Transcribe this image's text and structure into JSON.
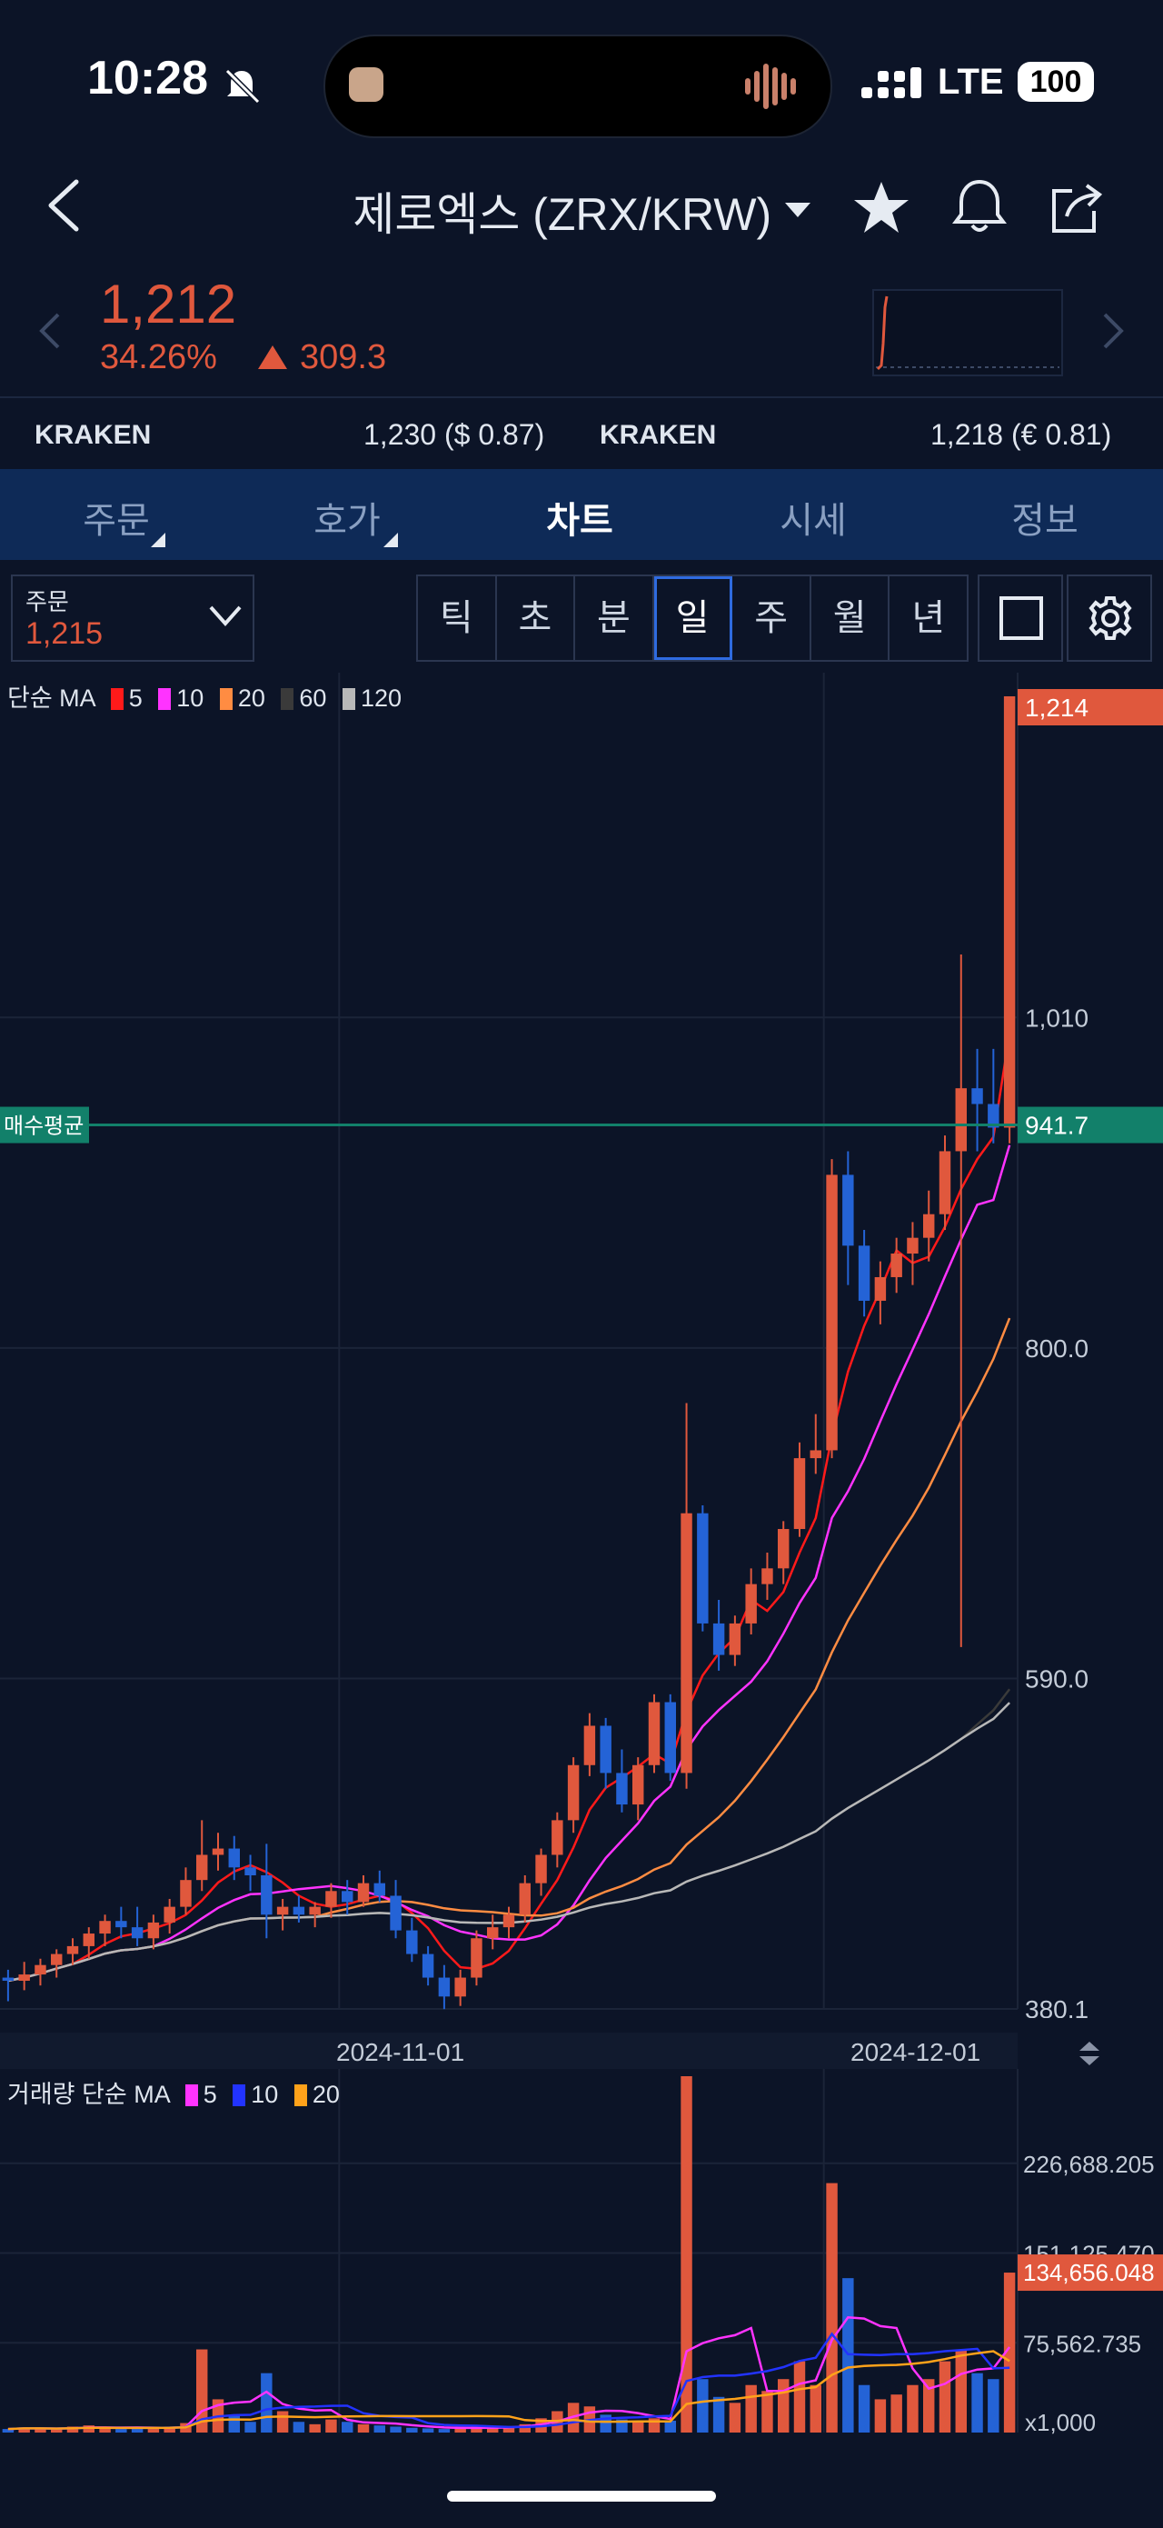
{
  "status": {
    "time": "10:28",
    "network": "LTE",
    "battery": "100"
  },
  "header": {
    "title": "제로엑스 (ZRX/KRW)",
    "price": "1,212",
    "change_pct": "34.26%",
    "change_abs": "309.3"
  },
  "exchanges": [
    {
      "name": "KRAKEN",
      "value": "1,230 ($ 0.87)"
    },
    {
      "name": "KRAKEN",
      "value": "1,218 (€ 0.81)"
    }
  ],
  "tabs": [
    "주문",
    "호가",
    "차트",
    "시세",
    "정보"
  ],
  "active_tab": "차트",
  "order_box": {
    "label": "주문",
    "value": "1,215"
  },
  "periods": [
    "틱",
    "초",
    "분",
    "일",
    "주",
    "월",
    "년"
  ],
  "active_period": "일",
  "colors": {
    "up": "#e0583d",
    "down": "#2463d6",
    "avg_line": "#12806a",
    "bg": "#0c1427"
  },
  "chart_data": {
    "type": "candlestick",
    "price_legend": {
      "prefix": "단순 MA",
      "periods": [
        "5",
        "10",
        "20",
        "60",
        "120"
      ],
      "colors": [
        "#ff1a1a",
        "#ff33ff",
        "#ff8c42",
        "#3a3a3a",
        "#b8b8b8"
      ]
    },
    "volume_legend": {
      "prefix": "거래량 단순 MA",
      "periods": [
        "5",
        "10",
        "20"
      ],
      "colors": [
        "#ff33ff",
        "#2233ff",
        "#ffa21a"
      ]
    },
    "x_ticks": [
      "2024-11-01",
      "2024-12-01"
    ],
    "y_ticks": [
      "1,010",
      "800.0",
      "590.0",
      "380.1"
    ],
    "ylim": [
      380.1,
      1214
    ],
    "current_price_label": "1,214",
    "avg_buy": {
      "label": "매수평균",
      "value": "941.7",
      "price": 941.7
    },
    "volume_ticks": [
      "226,688.205",
      "151,125.470",
      "75,562.735"
    ],
    "volume_unit": "x1,000",
    "volume_current_label": "134,656.048",
    "volume_max": 300000,
    "candles": [
      [
        400,
        405,
        385,
        398
      ],
      [
        398,
        410,
        392,
        402
      ],
      [
        402,
        412,
        395,
        408
      ],
      [
        408,
        418,
        400,
        415
      ],
      [
        415,
        425,
        408,
        420
      ],
      [
        420,
        432,
        412,
        428
      ],
      [
        428,
        440,
        420,
        436
      ],
      [
        436,
        445,
        425,
        432
      ],
      [
        432,
        445,
        420,
        425
      ],
      [
        425,
        440,
        418,
        435
      ],
      [
        435,
        450,
        428,
        445
      ],
      [
        445,
        470,
        440,
        462
      ],
      [
        462,
        500,
        455,
        478
      ],
      [
        478,
        492,
        468,
        482
      ],
      [
        482,
        490,
        462,
        470
      ],
      [
        470,
        478,
        455,
        465
      ],
      [
        465,
        485,
        425,
        440
      ],
      [
        440,
        450,
        430,
        445
      ],
      [
        445,
        452,
        435,
        440
      ],
      [
        440,
        448,
        432,
        445
      ],
      [
        445,
        460,
        438,
        455
      ],
      [
        455,
        462,
        440,
        448
      ],
      [
        448,
        465,
        445,
        460
      ],
      [
        460,
        468,
        448,
        452
      ],
      [
        452,
        462,
        425,
        430
      ],
      [
        430,
        438,
        410,
        415
      ],
      [
        415,
        420,
        395,
        400
      ],
      [
        400,
        408,
        380,
        388
      ],
      [
        388,
        405,
        382,
        400
      ],
      [
        400,
        430,
        395,
        425
      ],
      [
        425,
        440,
        418,
        432
      ],
      [
        432,
        445,
        425,
        440
      ],
      [
        440,
        465,
        435,
        460
      ],
      [
        460,
        482,
        452,
        478
      ],
      [
        478,
        505,
        470,
        500
      ],
      [
        500,
        540,
        492,
        535
      ],
      [
        535,
        568,
        528,
        560
      ],
      [
        560,
        565,
        520,
        530
      ],
      [
        530,
        545,
        505,
        510
      ],
      [
        510,
        540,
        500,
        535
      ],
      [
        535,
        580,
        530,
        575
      ],
      [
        575,
        580,
        525,
        530
      ],
      [
        530,
        765,
        520,
        695
      ],
      [
        695,
        700,
        620,
        625
      ],
      [
        625,
        640,
        595,
        605
      ],
      [
        605,
        630,
        598,
        625
      ],
      [
        625,
        660,
        618,
        650
      ],
      [
        650,
        670,
        640,
        660
      ],
      [
        660,
        690,
        650,
        685
      ],
      [
        685,
        740,
        680,
        730
      ],
      [
        730,
        758,
        720,
        735
      ],
      [
        735,
        920,
        730,
        910
      ],
      [
        910,
        925,
        840,
        865
      ],
      [
        865,
        875,
        820,
        830
      ],
      [
        830,
        855,
        815,
        845
      ],
      [
        845,
        870,
        835,
        860
      ],
      [
        860,
        880,
        840,
        870
      ],
      [
        870,
        900,
        855,
        885
      ],
      [
        885,
        935,
        875,
        925
      ],
      [
        925,
        1050,
        610,
        965
      ],
      [
        965,
        990,
        925,
        955
      ],
      [
        955,
        990,
        930,
        940
      ],
      [
        940,
        1214,
        930,
        1214
      ]
    ],
    "volumes": [
      3000,
      4000,
      3500,
      3000,
      5000,
      6000,
      4000,
      3000,
      3500,
      4000,
      5000,
      8000,
      70000,
      28000,
      15000,
      9000,
      50000,
      18000,
      9000,
      7000,
      11000,
      9000,
      7000,
      6000,
      5000,
      4000,
      3500,
      3000,
      4000,
      5000,
      4500,
      5000,
      7000,
      12000,
      18000,
      25000,
      22000,
      15000,
      11000,
      9000,
      12000,
      10000,
      300000,
      45000,
      30000,
      25000,
      40000,
      35000,
      45000,
      60000,
      40000,
      210000,
      130000,
      40000,
      28000,
      32000,
      40000,
      45000,
      60000,
      70000,
      50000,
      45000,
      134656
    ]
  }
}
